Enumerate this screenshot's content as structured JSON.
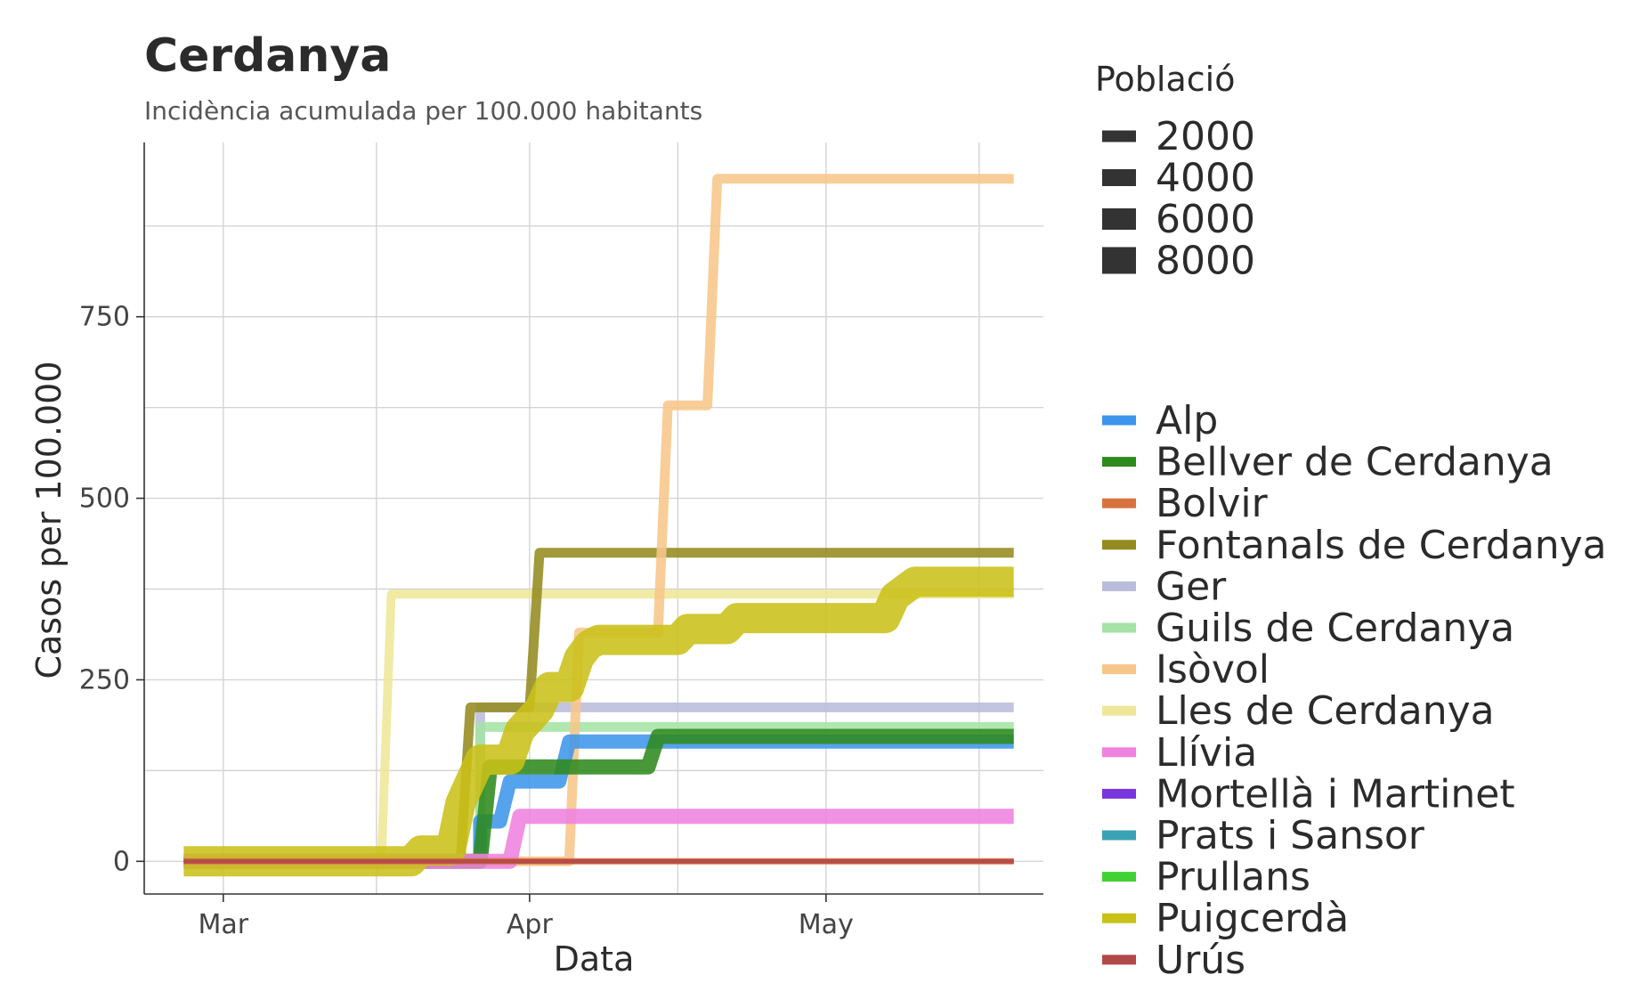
{
  "chart_data": {
    "type": "line",
    "title": "Cerdanya",
    "subtitle": "Incidència acumulada per 100.000 habitants",
    "xlabel": "Data",
    "ylabel": "Casos per 100.000",
    "x_ticks": [
      {
        "date": "2020-03-01",
        "label": "Mar"
      },
      {
        "date": "2020-04-01",
        "label": "Apr"
      },
      {
        "date": "2020-05-01",
        "label": "May"
      }
    ],
    "y_ticks": [
      0,
      250,
      500,
      750
    ],
    "xlim": [
      "2020-02-22",
      "2020-05-23"
    ],
    "ylim": [
      -45,
      990
    ],
    "grid": true,
    "legend_position": "right",
    "size_legend": {
      "title": "Població",
      "entries": [
        2000,
        4000,
        6000,
        8000
      ],
      "color": "#333333"
    },
    "series": [
      {
        "name": "Alp",
        "color": "#3d95eb",
        "points": [
          [
            "2020-02-26",
            0
          ],
          [
            "2020-03-27",
            0
          ],
          [
            "2020-03-27",
            55
          ],
          [
            "2020-03-29",
            55
          ],
          [
            "2020-03-30",
            110
          ],
          [
            "2020-04-04",
            110
          ],
          [
            "2020-04-05",
            165
          ],
          [
            "2020-05-20",
            165
          ]
        ]
      },
      {
        "name": "Bellver de Cerdanya",
        "color": "#2f8a1e",
        "points": [
          [
            "2020-02-26",
            0
          ],
          [
            "2020-03-27",
            0
          ],
          [
            "2020-03-28",
            130
          ],
          [
            "2020-04-13",
            130
          ],
          [
            "2020-04-14",
            172
          ],
          [
            "2020-05-20",
            172
          ]
        ]
      },
      {
        "name": "Bolvir",
        "color": "#d9733e",
        "points": [
          [
            "2020-02-26",
            0
          ],
          [
            "2020-05-20",
            0
          ]
        ]
      },
      {
        "name": "Fontanals de Cerdanya",
        "color": "#948b1f",
        "points": [
          [
            "2020-02-26",
            0
          ],
          [
            "2020-03-25",
            0
          ],
          [
            "2020-03-26",
            212
          ],
          [
            "2020-04-01",
            212
          ],
          [
            "2020-04-02",
            425
          ],
          [
            "2020-05-20",
            425
          ]
        ]
      },
      {
        "name": "Ger",
        "color": "#b9bcdc",
        "points": [
          [
            "2020-02-26",
            0
          ],
          [
            "2020-03-27",
            0
          ],
          [
            "2020-03-27",
            212
          ],
          [
            "2020-05-20",
            212
          ]
        ]
      },
      {
        "name": "Guils de Cerdanya",
        "color": "#a5e2a5",
        "points": [
          [
            "2020-02-26",
            0
          ],
          [
            "2020-03-27",
            0
          ],
          [
            "2020-03-27",
            185
          ],
          [
            "2020-05-20",
            185
          ]
        ]
      },
      {
        "name": "Isòvol",
        "color": "#f7c68a",
        "points": [
          [
            "2020-02-26",
            0
          ],
          [
            "2020-04-05",
            0
          ],
          [
            "2020-04-06",
            315
          ],
          [
            "2020-04-14",
            315
          ],
          [
            "2020-04-15",
            628
          ],
          [
            "2020-04-19",
            628
          ],
          [
            "2020-04-20",
            940
          ],
          [
            "2020-05-20",
            940
          ]
        ]
      },
      {
        "name": "Lles de Cerdanya",
        "color": "#eee799",
        "points": [
          [
            "2020-02-26",
            0
          ],
          [
            "2020-03-17",
            0
          ],
          [
            "2020-03-18",
            368
          ],
          [
            "2020-05-20",
            368
          ]
        ]
      },
      {
        "name": "Llívia",
        "color": "#ef82df",
        "points": [
          [
            "2020-02-26",
            0
          ],
          [
            "2020-03-30",
            0
          ],
          [
            "2020-03-31",
            62
          ],
          [
            "2020-05-20",
            62
          ]
        ]
      },
      {
        "name": "Mortellà i Martinet",
        "color": "#7b35dc",
        "points": [
          [
            "2020-02-26",
            0
          ],
          [
            "2020-05-20",
            0
          ]
        ]
      },
      {
        "name": "Prats i Sansor",
        "color": "#3aa2b4",
        "points": [
          [
            "2020-02-26",
            0
          ],
          [
            "2020-05-20",
            0
          ]
        ]
      },
      {
        "name": "Prullans",
        "color": "#42d134",
        "points": [
          [
            "2020-02-26",
            0
          ],
          [
            "2020-05-20",
            0
          ]
        ]
      },
      {
        "name": "Puigcerdà",
        "color": "#c9c018",
        "points": [
          [
            "2020-02-26",
            0
          ],
          [
            "2020-03-20",
            0
          ],
          [
            "2020-03-21",
            15
          ],
          [
            "2020-03-24",
            15
          ],
          [
            "2020-03-25",
            80
          ],
          [
            "2020-03-26",
            110
          ],
          [
            "2020-03-27",
            140
          ],
          [
            "2020-03-30",
            140
          ],
          [
            "2020-03-31",
            180
          ],
          [
            "2020-04-02",
            210
          ],
          [
            "2020-04-03",
            240
          ],
          [
            "2020-04-05",
            240
          ],
          [
            "2020-04-06",
            280
          ],
          [
            "2020-04-07",
            298
          ],
          [
            "2020-04-08",
            305
          ],
          [
            "2020-04-16",
            305
          ],
          [
            "2020-04-17",
            320
          ],
          [
            "2020-04-21",
            320
          ],
          [
            "2020-04-22",
            335
          ],
          [
            "2020-05-07",
            335
          ],
          [
            "2020-05-08",
            365
          ],
          [
            "2020-05-10",
            385
          ],
          [
            "2020-05-20",
            385
          ]
        ]
      },
      {
        "name": "Urús",
        "color": "#b34848",
        "points": [
          [
            "2020-02-26",
            0
          ],
          [
            "2020-05-20",
            0
          ]
        ]
      }
    ],
    "line_widths": {
      "Alp": 16,
      "Bellver de Cerdanya": 17,
      "Bolvir": 7,
      "Fontanals de Cerdanya": 11,
      "Ger": 11,
      "Guils de Cerdanya": 11,
      "Isòvol": 11,
      "Lles de Cerdanya": 10,
      "Llívia": 17,
      "Mortellà i Martinet": 4,
      "Prats i Sansor": 5,
      "Prullans": 4,
      "Puigcerdà": 34,
      "Urús": 5
    },
    "draw_order": [
      "Lles de Cerdanya",
      "Ger",
      "Guils de Cerdanya",
      "Fontanals de Cerdanya",
      "Isòvol",
      "Alp",
      "Bellver de Cerdanya",
      "Llívia",
      "Puigcerdà",
      "Prullans",
      "Prats i Sansor",
      "Mortellà i Martinet",
      "Bolvir",
      "Urús"
    ]
  }
}
